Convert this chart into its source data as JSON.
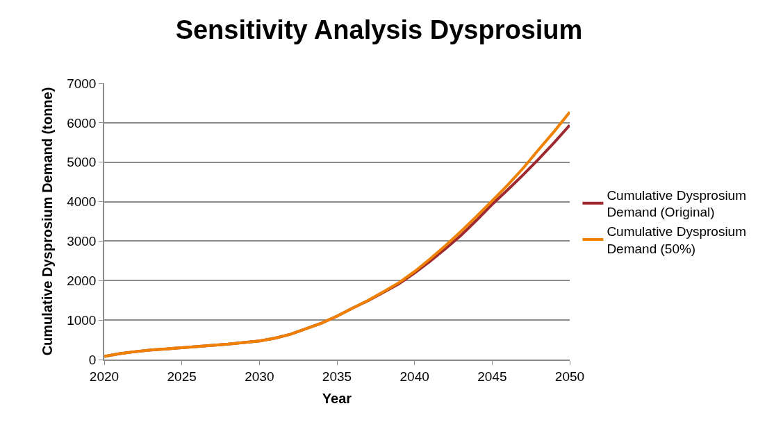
{
  "chart_data": {
    "type": "line",
    "title": "Sensitivity Analysis Dysprosium",
    "xlabel": "Year",
    "ylabel": "Cumulative Dysprosium Demand (tonne)",
    "x": [
      2020,
      2021,
      2022,
      2023,
      2024,
      2025,
      2026,
      2027,
      2028,
      2029,
      2030,
      2031,
      2032,
      2033,
      2034,
      2035,
      2036,
      2037,
      2038,
      2039,
      2040,
      2041,
      2042,
      2043,
      2044,
      2045,
      2046,
      2047,
      2048,
      2049,
      2050
    ],
    "series": [
      {
        "name": "Cumulative Dysprosium Demand (Original)",
        "color": "#9e2a30",
        "values": [
          80,
          150,
          200,
          240,
          270,
          300,
          330,
          360,
          390,
          430,
          470,
          540,
          640,
          780,
          920,
          1100,
          1300,
          1490,
          1700,
          1920,
          2190,
          2490,
          2810,
          3150,
          3530,
          3930,
          4300,
          4680,
          5080,
          5500,
          5940
        ]
      },
      {
        "name": "Cumulative Dysprosium Demand (50%)",
        "color": "#f08000",
        "values": [
          80,
          150,
          200,
          240,
          270,
          300,
          330,
          360,
          390,
          430,
          470,
          540,
          640,
          780,
          920,
          1100,
          1300,
          1500,
          1720,
          1950,
          2230,
          2550,
          2890,
          3250,
          3630,
          4020,
          4420,
          4850,
          5320,
          5780,
          6270
        ]
      }
    ],
    "xlim": [
      2020,
      2050
    ],
    "xticks": [
      2020,
      2025,
      2030,
      2035,
      2040,
      2045,
      2050
    ],
    "ylim": [
      0,
      7000
    ],
    "yticks": [
      0,
      1000,
      2000,
      3000,
      4000,
      5000,
      6000,
      7000
    ],
    "grid": "y",
    "legend": "right",
    "marker": "none",
    "line_style": "solid"
  }
}
